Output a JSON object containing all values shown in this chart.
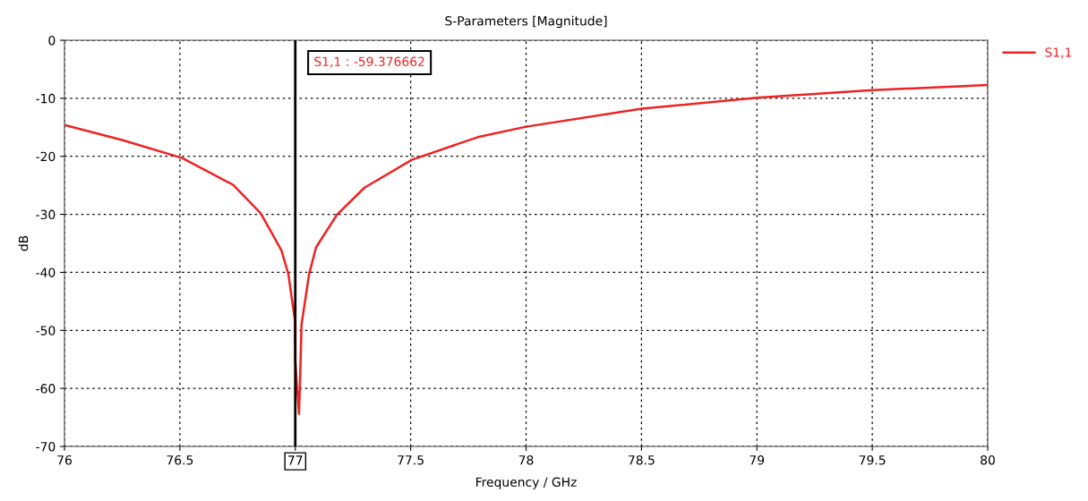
{
  "chart_data": {
    "type": "line",
    "title": "S-Parameters [Magnitude]",
    "xlabel": "Frequency / GHz",
    "ylabel": "dB",
    "series": [
      {
        "name": "S1,1",
        "color": "#ee2222",
        "x": [
          76.0,
          76.25,
          76.51,
          76.73,
          76.85,
          76.94,
          76.97,
          76.998,
          77.0,
          77.016,
          77.02,
          77.027,
          77.06,
          77.09,
          77.18,
          77.3,
          77.505,
          77.79,
          78.0,
          78.5,
          79.0,
          79.5,
          80.0
        ],
        "values": [
          -14.6,
          -17.2,
          -20.3,
          -24.9,
          -29.8,
          -36.2,
          -40.3,
          -48.1,
          -55.2,
          -64.4,
          -59.8,
          -49.0,
          -40.3,
          -35.7,
          -30.1,
          -25.4,
          -20.6,
          -16.7,
          -14.9,
          -11.8,
          -9.9,
          -8.6,
          -7.7
        ]
      }
    ],
    "xlim": [
      76,
      80
    ],
    "ylim": [
      -70,
      0
    ],
    "xticks": [
      76,
      76.5,
      {
        "value": 77,
        "label": null
      },
      77.5,
      78,
      78.5,
      79,
      79.5,
      80
    ],
    "yticks": [
      -70,
      -60,
      -50,
      -40,
      -30,
      -20,
      -10,
      0
    ],
    "ref_lines": [
      {
        "axis": "x",
        "value": 77,
        "label": "77",
        "color": "#000000"
      }
    ],
    "annotations": [
      "S1,1 : -59.376662"
    ],
    "grid": true,
    "legend": "top right",
    "line_style": "solid",
    "marker": "none"
  }
}
